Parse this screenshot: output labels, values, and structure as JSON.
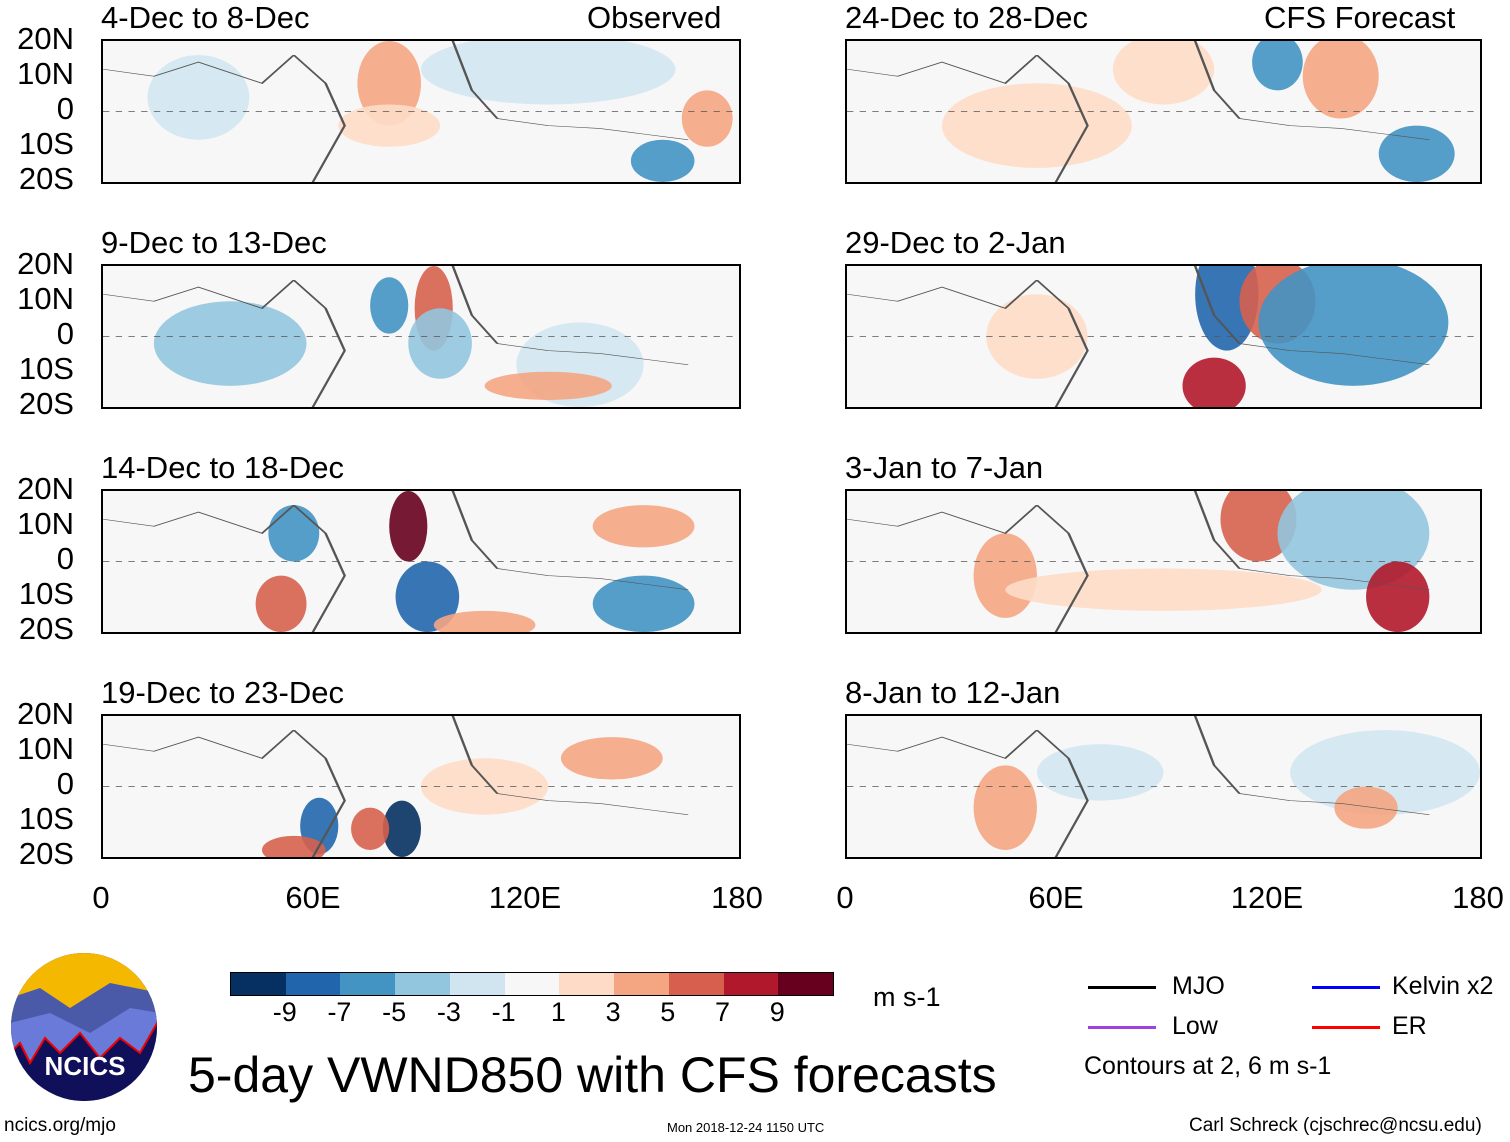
{
  "left_header_label": "Observed",
  "right_header_label": "CFS Forecast",
  "panels_left": [
    "4-Dec to 8-Dec",
    "9-Dec to 13-Dec",
    "14-Dec to 18-Dec",
    "19-Dec to 23-Dec"
  ],
  "panels_right": [
    "24-Dec to 28-Dec",
    "29-Dec to 2-Jan",
    "3-Jan to 7-Jan",
    "8-Jan to 12-Jan"
  ],
  "lat_labels": [
    "20N",
    "10N",
    "0",
    "10S",
    "20S"
  ],
  "lon_labels": [
    "0",
    "60E",
    "120E",
    "180"
  ],
  "colorbar": {
    "colors": [
      "#053061",
      "#2166ac",
      "#4393c3",
      "#92c5de",
      "#d1e5f0",
      "#f7f7f7",
      "#fddbc7",
      "#f4a582",
      "#d6604d",
      "#b2182b",
      "#67001f"
    ],
    "labels": [
      "-9",
      "-7",
      "-5",
      "-3",
      "-1",
      "1",
      "3",
      "5",
      "7",
      "9"
    ],
    "units": "m s-1"
  },
  "legend": {
    "items": [
      {
        "label": "MJO",
        "color": "#000000"
      },
      {
        "label": "Kelvin x2",
        "color": "#0000ff"
      },
      {
        "label": "Low",
        "color": "#a040e0"
      },
      {
        "label": "ER",
        "color": "#ff0000"
      }
    ],
    "contours_note": "Contours at 2, 6 m s-1"
  },
  "logo_text": "NCICS",
  "title": "5-day VWND850 with CFS forecasts",
  "footer": {
    "url": "ncics.org/mjo",
    "timestamp": "Mon 2018-12-24 1150 UTC",
    "credit": "Carl Schreck (cjschrec@ncsu.edu)"
  }
}
